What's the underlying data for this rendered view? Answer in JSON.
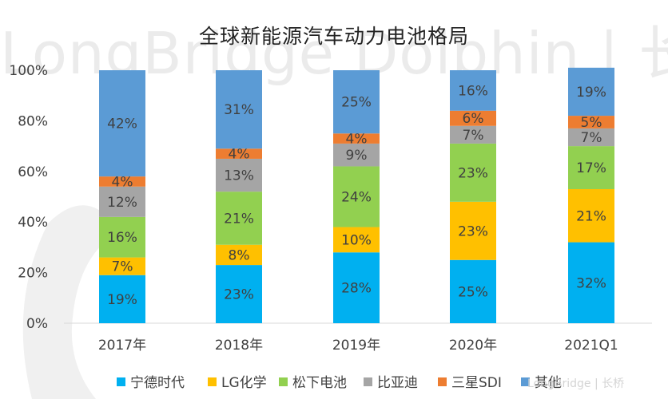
{
  "watermark": "LongBridge Dolphin | 长桥海豚投研",
  "corner_watermark": "LongBridge | 长桥",
  "chart_data": {
    "type": "bar",
    "stacked": true,
    "title": "全球新能源汽车动力电池格局",
    "categories": [
      "2017年",
      "2018年",
      "2019年",
      "2020年",
      "2021Q1"
    ],
    "series": [
      {
        "name": "宁德时代",
        "color": "#00B0F0",
        "values": [
          19,
          23,
          28,
          25,
          32
        ],
        "labels": [
          "19%",
          "23%",
          "28%",
          "25%",
          "32%"
        ]
      },
      {
        "name": "LG化学",
        "color": "#FFC000",
        "values": [
          7,
          8,
          10,
          23,
          21
        ],
        "labels": [
          "7%",
          "8%",
          "10%",
          "23%",
          "21%"
        ]
      },
      {
        "name": "松下电池",
        "color": "#92D050",
        "values": [
          16,
          21,
          24,
          23,
          17
        ],
        "labels": [
          "16%",
          "21%",
          "24%",
          "23%",
          "17%"
        ]
      },
      {
        "name": "比亚迪",
        "color": "#A5A5A5",
        "values": [
          12,
          13,
          9,
          7,
          7
        ],
        "labels": [
          "12%",
          "13%",
          "9%",
          "7%",
          "7%"
        ]
      },
      {
        "name": "三星SDI",
        "color": "#ED7D31",
        "values": [
          4,
          4,
          4,
          6,
          5
        ],
        "labels": [
          "4%",
          "4%",
          "4%",
          "6%",
          "5%"
        ]
      },
      {
        "name": "其他",
        "color": "#5B9BD5",
        "values": [
          42,
          31,
          25,
          16,
          19
        ],
        "labels": [
          "42%",
          "31%",
          "25%",
          "16%",
          "19%"
        ]
      }
    ],
    "ylim": [
      0,
      100
    ],
    "yticks": [
      0,
      20,
      40,
      60,
      80,
      100
    ],
    "ytick_labels": [
      "0%",
      "20%",
      "40%",
      "60%",
      "80%",
      "100%"
    ],
    "grid": false,
    "legend_position": "bottom"
  }
}
